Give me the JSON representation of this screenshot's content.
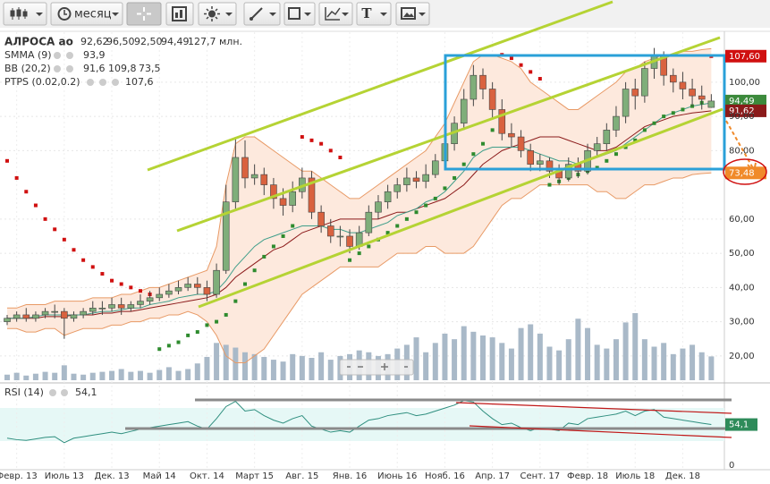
{
  "toolbar": {
    "period": "месяц",
    "text_tool": "T"
  },
  "chart_data": [
    {
      "type": "candlestick",
      "title": "АЛРОСА ао",
      "categories": [
        null,
        "Февр. 13",
        null,
        null,
        null,
        null,
        "Июль 13",
        null,
        null,
        null,
        null,
        "Дек. 13",
        null,
        null,
        null,
        null,
        "Май 14",
        null,
        null,
        null,
        null,
        "Окт. 14",
        null,
        null,
        null,
        null,
        "Март 15",
        null,
        null,
        null,
        null,
        "Авг. 15",
        null,
        null,
        null,
        null,
        "Янв. 16",
        null,
        null,
        null,
        null,
        "Июнь 16",
        null,
        null,
        null,
        null,
        "Нояб. 16",
        null,
        null,
        null,
        null,
        "Апр. 17",
        null,
        null,
        null,
        null,
        "Сент. 17",
        null,
        null,
        null,
        null,
        "Февр. 18",
        null,
        null,
        null,
        null,
        "Июль 18",
        null,
        null,
        null,
        null,
        "Дек. 18",
        null,
        null,
        null
      ],
      "open": [
        30,
        31,
        32,
        31,
        32,
        33,
        33,
        31,
        32,
        33,
        34,
        34,
        35,
        34,
        35,
        36,
        37,
        38,
        39,
        40,
        41,
        40,
        38,
        45,
        65,
        78,
        72,
        73,
        70,
        66,
        64,
        68,
        72,
        62,
        58,
        55,
        55,
        52,
        56,
        62,
        65,
        68,
        70,
        72,
        71,
        73,
        77,
        82,
        88,
        95,
        102,
        98,
        92,
        85,
        84,
        80,
        76,
        77,
        74,
        72,
        76,
        74,
        80,
        82,
        86,
        90,
        98,
        96,
        104,
        108,
        102,
        100,
        98,
        96,
        92.62
      ],
      "high": [
        32,
        33,
        34,
        33,
        34,
        35,
        34,
        33,
        34,
        36,
        36,
        37,
        37,
        36,
        38,
        39,
        40,
        41,
        42,
        43,
        43,
        42,
        47,
        70,
        84,
        83,
        76,
        75,
        72,
        69,
        71,
        75,
        74,
        64,
        60,
        58,
        57,
        58,
        64,
        67,
        70,
        72,
        75,
        74,
        76,
        79,
        85,
        90,
        98,
        105,
        104,
        100,
        95,
        88,
        86,
        82,
        79,
        78,
        76,
        78,
        78,
        82,
        84,
        88,
        93,
        100,
        101,
        106,
        110,
        109,
        104,
        103,
        101,
        99,
        96.5
      ],
      "low": [
        29,
        30,
        30,
        30,
        31,
        31,
        25,
        30,
        31,
        32,
        32,
        33,
        32,
        33,
        34,
        35,
        36,
        37,
        38,
        39,
        38,
        36,
        37,
        44,
        63,
        69,
        70,
        67,
        63,
        61,
        62,
        66,
        60,
        56,
        53,
        52,
        50,
        51,
        55,
        60,
        63,
        66,
        68,
        69,
        69,
        72,
        75,
        80,
        86,
        93,
        95,
        89,
        83,
        81,
        78,
        74,
        74,
        72,
        70,
        71,
        72,
        73,
        78,
        80,
        84,
        88,
        92,
        94,
        101,
        99,
        97,
        95,
        93,
        92,
        92.5
      ],
      "close": [
        31,
        32,
        31,
        32,
        33,
        33,
        31,
        32,
        33,
        34,
        34,
        35,
        34,
        35,
        36,
        37,
        38,
        39,
        40,
        41,
        40,
        38,
        45,
        65,
        78,
        72,
        73,
        70,
        66,
        64,
        68,
        72,
        62,
        58,
        55,
        55,
        52,
        56,
        62,
        65,
        68,
        70,
        72,
        71,
        73,
        77,
        82,
        88,
        95,
        102,
        98,
        92,
        85,
        84,
        80,
        76,
        77,
        74,
        72,
        76,
        74,
        80,
        82,
        86,
        90,
        98,
        96,
        104,
        108,
        102,
        100,
        98,
        96,
        95,
        94.49
      ],
      "ohlc_labels": [
        "92,62",
        "96,50",
        "92,50",
        "94,49"
      ],
      "close_tag": "94,49",
      "up_color": "#7fae7a",
      "down_color": "#d9623f",
      "volume": [
        30,
        40,
        25,
        35,
        45,
        40,
        80,
        35,
        30,
        40,
        45,
        50,
        60,
        45,
        50,
        40,
        55,
        70,
        50,
        60,
        90,
        125,
        200,
        190,
        175,
        150,
        140,
        125,
        110,
        100,
        140,
        130,
        120,
        150,
        110,
        130,
        140,
        160,
        150,
        130,
        140,
        170,
        190,
        230,
        150,
        200,
        250,
        220,
        290,
        260,
        240,
        230,
        200,
        170,
        280,
        300,
        250,
        180,
        160,
        220,
        330,
        280,
        190,
        170,
        220,
        310,
        360,
        220,
        180,
        200,
        140,
        170,
        190,
        150,
        127.7
      ],
      "volume_label": "127,7 млн.",
      "volume_color": "#a9b9c8",
      "smma": {
        "name": "SMMA (9)",
        "color": "#3f9e8a",
        "label": "93,9",
        "values": [
          31,
          31,
          31,
          31.5,
          32,
          32,
          32,
          32,
          32,
          32.5,
          33,
          33,
          33.5,
          34,
          34,
          35,
          35.5,
          36,
          37,
          37.5,
          38,
          38,
          39,
          42,
          46,
          49,
          52,
          54,
          55,
          56,
          57,
          58,
          58,
          58,
          57,
          57,
          56,
          56,
          57,
          58,
          59,
          61,
          62,
          63,
          65,
          66,
          68,
          71,
          74,
          78,
          80,
          81,
          81,
          81,
          81,
          80,
          79,
          78,
          77,
          77,
          76,
          77,
          78,
          79,
          80,
          82,
          84,
          86,
          88,
          90,
          91,
          92,
          93,
          93.5,
          93.9
        ]
      },
      "bb": {
        "name": "BB (20,2)",
        "fill": "#fde9dd",
        "mid": {
          "color": "#8b1a1a",
          "label": "91,6",
          "tag": "91,62",
          "values": [
            31,
            31,
            31,
            31,
            31.5,
            31.5,
            31.5,
            32,
            32,
            32,
            32.5,
            32.5,
            33,
            33,
            33.5,
            34,
            34.5,
            35,
            35.5,
            36,
            36.5,
            37,
            38,
            40,
            43,
            45,
            47,
            49,
            51,
            52,
            54,
            56,
            57,
            58,
            59,
            60,
            60,
            60,
            60,
            60,
            61,
            62,
            62,
            63,
            64,
            65,
            66,
            68,
            70,
            73,
            76,
            78,
            80,
            81,
            82,
            83,
            84,
            84,
            84,
            83,
            82,
            81,
            80,
            80,
            81,
            83,
            85,
            87,
            88,
            89,
            90,
            90.5,
            91,
            91.3,
            91.62
          ]
        },
        "upper": {
          "color": "#e89a66",
          "label": "109,8",
          "values": [
            34,
            34,
            35,
            35,
            35,
            36,
            36,
            36,
            36,
            37,
            37,
            37,
            38,
            38,
            39,
            40,
            40,
            41,
            42,
            43,
            44,
            45,
            52,
            70,
            82,
            84,
            84,
            82,
            80,
            78,
            76,
            74,
            74,
            72,
            70,
            68,
            66,
            66,
            68,
            70,
            72,
            74,
            76,
            78,
            80,
            84,
            88,
            94,
            100,
            106,
            108,
            108,
            107,
            106,
            104,
            100,
            98,
            96,
            94,
            92,
            92,
            94,
            96,
            98,
            100,
            103,
            104,
            106,
            107,
            108,
            108,
            109,
            109,
            109.5,
            109.8
          ]
        },
        "lower": {
          "color": "#e89a66",
          "label": "73,5",
          "tag": "73,48",
          "values": [
            28,
            28,
            27,
            27,
            28,
            28,
            26,
            27,
            28,
            28,
            28,
            29,
            29,
            30,
            30,
            31,
            31,
            32,
            32,
            33,
            32,
            30,
            26,
            20,
            18,
            18,
            20,
            22,
            26,
            30,
            34,
            38,
            40,
            42,
            44,
            46,
            46,
            46,
            46,
            46,
            48,
            50,
            50,
            50,
            52,
            52,
            50,
            50,
            50,
            52,
            56,
            60,
            64,
            66,
            66,
            68,
            70,
            70,
            70,
            70,
            70,
            70,
            68,
            68,
            66,
            66,
            68,
            70,
            70,
            71,
            72,
            72,
            73,
            73.3,
            73.48
          ]
        }
      },
      "ptps": {
        "name": "PTPS (0.02,0.2)",
        "label": "107,6",
        "tag": "107,60",
        "color_above": "#d01010",
        "color_below": "#2e8b2e",
        "values": [
          77,
          72,
          68,
          64,
          60,
          57,
          54,
          51,
          48,
          46,
          44,
          42,
          41,
          40,
          39,
          38,
          22,
          23,
          24,
          26,
          27,
          29,
          30,
          32,
          36,
          41,
          45,
          49,
          52,
          55,
          58,
          84,
          83,
          82,
          80,
          78,
          48,
          50,
          52,
          54,
          56,
          58,
          60,
          62,
          64,
          66,
          69,
          72,
          76,
          79,
          82,
          86,
          108,
          107,
          105,
          103,
          101,
          70,
          71,
          72,
          73,
          74,
          75,
          77,
          79,
          81,
          83,
          86,
          88,
          90,
          91,
          92,
          93,
          94,
          107.6
        ]
      },
      "ylim": [
        12.9,
        114.6
      ],
      "yticks": [
        {
          "value": 20,
          "label": "20,00"
        },
        {
          "value": 30,
          "label": "30,00"
        },
        {
          "value": 40,
          "label": "40,00"
        },
        {
          "value": 50,
          "label": "50,00"
        },
        {
          "value": 60,
          "label": "60,00"
        },
        {
          "value": 80,
          "label": "80,00"
        },
        {
          "value": 90,
          "label": "90,00"
        },
        {
          "value": 100,
          "label": "100,00"
        }
      ],
      "grid": true
    },
    {
      "type": "line",
      "name": "RSI (14)",
      "label": "54,1",
      "color": "#2f8f7f",
      "values": [
        36,
        34,
        33,
        35,
        37,
        38,
        30,
        36,
        38,
        40,
        42,
        44,
        42,
        45,
        48,
        50,
        52,
        54,
        56,
        58,
        52,
        48,
        62,
        78,
        85,
        72,
        74,
        66,
        60,
        56,
        62,
        66,
        52,
        48,
        44,
        46,
        44,
        52,
        60,
        62,
        66,
        68,
        70,
        66,
        68,
        72,
        76,
        80,
        86,
        84,
        72,
        62,
        54,
        56,
        50,
        46,
        50,
        48,
        46,
        56,
        54,
        62,
        64,
        66,
        68,
        72,
        66,
        72,
        74,
        64,
        62,
        60,
        58,
        56,
        54.1
      ],
      "ylim": [
        0,
        100
      ],
      "yticks": [
        0
      ]
    }
  ]
}
